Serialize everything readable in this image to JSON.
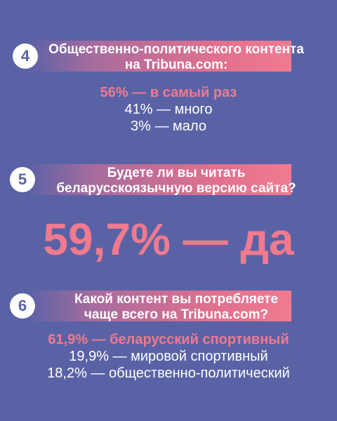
{
  "q4": {
    "number": "4",
    "question_line1": "Общественно-политического контента",
    "question_line2": "на Tribuna.com:",
    "answers": [
      "56% — в самый раз",
      "41% — много",
      "3% — мало"
    ]
  },
  "q5": {
    "number": "5",
    "question_line1": "Будете ли вы читать",
    "question_line2": "беларусскоязычную версию сайта?",
    "answer": "59,7% — да"
  },
  "q6": {
    "number": "6",
    "question_line1": "Какой контент вы потребляете",
    "question_line2": "чаще всего на Tribuna.com?",
    "answers": [
      "61,9% — беларусский спортивный",
      "19,9% — мировой спортивный",
      "18,2% — общественно-политический"
    ]
  }
}
